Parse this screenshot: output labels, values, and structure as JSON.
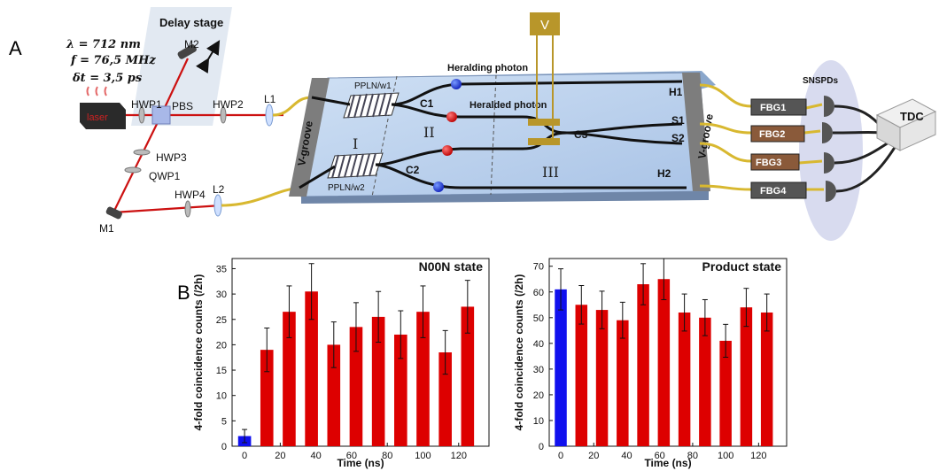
{
  "panel_labels": {
    "a": "A",
    "b": "B"
  },
  "setup": {
    "delay_stage": "Delay stage",
    "params": {
      "lambda": "λ = 712 nm",
      "f": "f = 76,5 MHz",
      "delta": "δt = 3,5 ps"
    },
    "laser": "laser",
    "components": {
      "m1": "M1",
      "m2": "M2",
      "hwp1": "HWP1",
      "pbs": "PBS",
      "hwp2": "HWP2",
      "hwp3": "HWP3",
      "qwp1": "QWP1",
      "hwp4": "HWP4",
      "l1": "L1",
      "l2": "L2"
    },
    "chip": {
      "vgroove_left": "V-groove",
      "vgroove_right": "V-groove",
      "ppln_w1": "PPLN/w1",
      "ppln_w2": "PPLN/w2",
      "c1": "C1",
      "c2": "C2",
      "c3": "C3",
      "heralding": "Heralding photon",
      "heralded": "Heralded photon",
      "region1": "I",
      "region2": "II",
      "region3": "III",
      "voltage": "V",
      "out_h1": "H1",
      "out_s1": "S1",
      "out_s2": "S2",
      "out_h2": "H2"
    },
    "detection": {
      "fbg1": "FBG1",
      "fbg2": "FBG2",
      "fbg3": "FBG3",
      "fbg4": "FBG4",
      "snspds": "SNSPDs",
      "tdc": "TDC"
    }
  },
  "colors": {
    "bar_red": "#dd0000",
    "bar_blue": "#1010ee",
    "beam": "#cc1111",
    "fiber": "#d8b830"
  },
  "chart_data": [
    {
      "type": "bar",
      "title": "N00N state",
      "xlabel": "Time (ns)",
      "ylabel": "4-fold coincidence counts (/2h)",
      "ylim": [
        0,
        37
      ],
      "yticks": [
        0,
        5,
        10,
        15,
        20,
        25,
        30,
        35
      ],
      "xlim": [
        -7,
        137
      ],
      "xticks": [
        0,
        20,
        40,
        60,
        80,
        100,
        120
      ],
      "x": [
        0,
        12.5,
        25,
        37.5,
        50,
        62.5,
        75,
        87.5,
        100,
        112.5,
        125
      ],
      "values": [
        2,
        19,
        26.5,
        30.5,
        20,
        23.5,
        25.5,
        22,
        26.5,
        18.5,
        27.5
      ],
      "errors": [
        1.3,
        4.3,
        5.1,
        5.5,
        4.5,
        4.8,
        5,
        4.7,
        5.1,
        4.3,
        5.2
      ],
      "bar_colors": [
        "blue",
        "red",
        "red",
        "red",
        "red",
        "red",
        "red",
        "red",
        "red",
        "red",
        "red"
      ]
    },
    {
      "type": "bar",
      "title": "Product state",
      "xlabel": "Time (ns)",
      "ylabel": "4-fold coincidence counts (/2h)",
      "ylim": [
        0,
        73
      ],
      "yticks": [
        0,
        10,
        20,
        30,
        40,
        50,
        60,
        70
      ],
      "xlim": [
        -7,
        137
      ],
      "xticks": [
        0,
        20,
        40,
        60,
        80,
        100,
        120
      ],
      "x": [
        0,
        12.5,
        25,
        37.5,
        50,
        62.5,
        75,
        87.5,
        100,
        112.5,
        125
      ],
      "values": [
        61,
        55,
        53,
        49,
        63,
        65,
        52,
        50,
        41,
        54,
        52
      ],
      "errors": [
        8,
        7.5,
        7.3,
        7,
        8,
        8,
        7.2,
        7,
        6.4,
        7.4,
        7.2
      ],
      "bar_colors": [
        "blue",
        "red",
        "red",
        "red",
        "red",
        "red",
        "red",
        "red",
        "red",
        "red",
        "red"
      ]
    }
  ]
}
